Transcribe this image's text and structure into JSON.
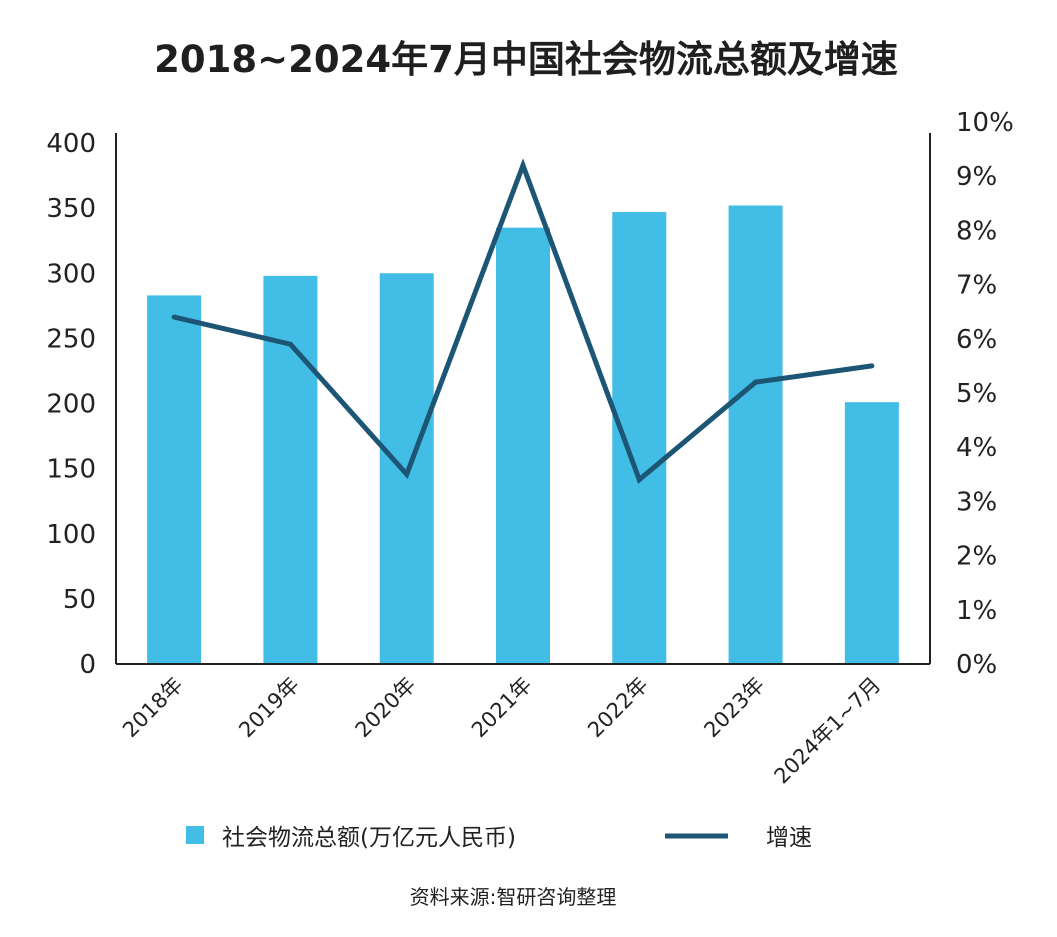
{
  "chart_data": {
    "type": "bar",
    "title": "2018~2024年7月中国社会物流总额及增速",
    "categories": [
      "2018年",
      "2019年",
      "2020年",
      "2021年",
      "2022年",
      "2023年",
      "2024年1~7月"
    ],
    "series": [
      {
        "name": "社会物流总额(万亿元人民币)",
        "type": "bar",
        "axis": "left",
        "values": [
          283,
          298,
          300,
          335,
          347,
          352,
          201
        ]
      },
      {
        "name": "增速",
        "type": "line",
        "axis": "right",
        "values": [
          6.4,
          5.9,
          3.5,
          9.2,
          3.4,
          5.2,
          5.5
        ]
      }
    ],
    "ylim": [
      0,
      400
    ],
    "yticks": [
      "0",
      "50",
      "100",
      "150",
      "200",
      "250",
      "300",
      "350",
      "400"
    ],
    "y2lim": [
      0,
      10
    ],
    "y2ticks": [
      "0%",
      "1%",
      "2%",
      "3%",
      "4%",
      "5%",
      "6%",
      "7%",
      "8%",
      "9%",
      "10%"
    ],
    "legend": "bottom",
    "grid": false,
    "colors": {
      "bar": "#42bde6",
      "line": "#1c5674",
      "axis": "#222222"
    },
    "source": "资料来源:智研咨询整理"
  }
}
